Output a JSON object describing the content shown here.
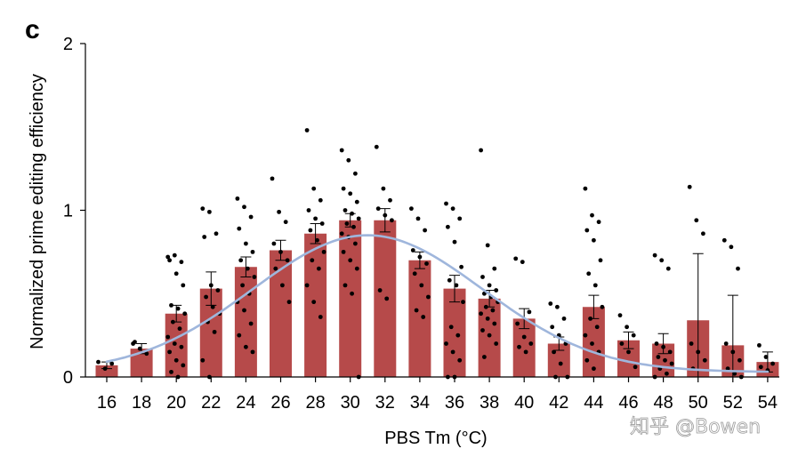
{
  "panel_label": "c",
  "watermark": "知乎 @Bowen",
  "chart_data": {
    "type": "bar",
    "xlabel": "PBS Tm (°C)",
    "ylabel": "Normalized prime editing efficiency",
    "ylim": [
      0,
      2
    ],
    "yticks": [
      "0",
      "1",
      "2"
    ],
    "categories": [
      "16",
      "18",
      "20",
      "22",
      "24",
      "26",
      "28",
      "30",
      "32",
      "34",
      "36",
      "38",
      "40",
      "42",
      "44",
      "46",
      "48",
      "50",
      "52",
      "54"
    ],
    "values": [
      0.07,
      0.17,
      0.38,
      0.53,
      0.66,
      0.76,
      0.86,
      0.94,
      0.94,
      0.7,
      0.53,
      0.47,
      0.35,
      0.2,
      0.42,
      0.22,
      0.2,
      0.34,
      0.19,
      0.09
    ],
    "error": [
      0.02,
      0.03,
      0.05,
      0.1,
      0.06,
      0.06,
      0.06,
      0.04,
      0.07,
      0.05,
      0.08,
      0.05,
      0.06,
      0.04,
      0.07,
      0.05,
      0.06,
      0.4,
      0.3,
      0.06
    ],
    "points": [
      [
        0.09,
        0.05,
        0.08
      ],
      [
        0.2,
        0.17,
        0.14,
        0.21
      ],
      [
        0.72,
        0.73,
        0.69,
        0.7,
        0.62,
        0.55,
        0.43,
        0.41,
        0.38,
        0.33,
        0.29,
        0.24,
        0.2,
        0.18,
        0.15,
        0.1,
        0.07,
        0.03,
        0.0
      ],
      [
        1.01,
        0.99,
        0.86,
        0.84,
        0.55,
        0.52,
        0.48,
        0.42,
        0.38,
        0.33,
        0.27,
        0.1,
        0.0
      ],
      [
        1.07,
        1.02,
        0.96,
        0.89,
        0.8,
        0.75,
        0.7,
        0.65,
        0.6,
        0.55,
        0.5,
        0.45,
        0.4,
        0.32,
        0.25,
        0.18,
        0.15
      ],
      [
        1.19,
        0.99,
        0.93,
        0.8,
        0.75,
        0.7,
        0.65,
        0.55,
        0.45
      ],
      [
        1.48,
        1.13,
        1.06,
        1.0,
        0.95,
        0.92,
        0.88,
        0.82,
        0.75,
        0.7,
        0.65,
        0.55,
        0.45,
        0.36
      ],
      [
        1.36,
        1.3,
        1.22,
        1.13,
        1.1,
        1.05,
        1.0,
        0.98,
        0.95,
        0.92,
        0.9,
        0.86,
        0.84,
        0.8,
        0.75,
        0.7,
        0.65,
        0.55,
        0.5,
        0.0
      ],
      [
        1.38,
        1.13,
        1.06,
        1.01,
        0.97,
        0.94,
        0.52,
        0.47
      ],
      [
        1.01,
        0.95,
        0.88,
        0.76,
        0.72,
        0.68,
        0.62,
        0.55,
        0.48,
        0.4,
        0.36
      ],
      [
        1.04,
        1.01,
        0.95,
        0.9,
        0.81,
        0.66,
        0.58,
        0.55,
        0.45,
        0.3,
        0.25,
        0.2,
        0.15,
        0.1,
        0.0,
        0.0
      ],
      [
        1.36,
        0.79,
        0.65,
        0.6,
        0.55,
        0.52,
        0.5,
        0.48,
        0.45,
        0.42,
        0.4,
        0.38,
        0.35,
        0.32,
        0.28,
        0.25,
        0.2,
        0.12
      ],
      [
        0.71,
        0.69,
        0.39,
        0.32,
        0.24,
        0.2,
        0.18,
        0.15
      ],
      [
        0.44,
        0.42,
        0.35,
        0.3,
        0.25,
        0.2,
        0.15,
        0.08,
        0.0,
        0.0
      ],
      [
        1.13,
        0.97,
        0.93,
        0.88,
        0.82,
        0.7,
        0.62,
        0.55,
        0.42,
        0.35,
        0.3,
        0.25,
        0.2,
        0.15,
        0.1,
        0.05
      ],
      [
        0.37,
        0.3,
        0.25,
        0.2,
        0.15,
        0.06
      ],
      [
        0.73,
        0.7,
        0.65,
        0.2,
        0.18,
        0.15,
        0.12,
        0.1,
        0.08,
        0.05,
        0.02,
        0.0
      ],
      [
        1.14,
        0.94,
        0.86,
        0.2,
        0.15,
        0.1,
        0.05
      ],
      [
        0.82,
        0.78,
        0.65,
        0.2,
        0.15,
        0.1,
        0.05,
        0.02,
        0.0
      ],
      [
        0.19,
        0.12,
        0.08,
        0.06,
        0.04
      ]
    ],
    "fit_curve": {
      "type": "gaussian",
      "peak_y": 0.85,
      "peak_x": 31,
      "sigma": 6.6,
      "baseline": 0.03,
      "x_range": [
        16,
        54
      ],
      "color": "#9fb6dc"
    },
    "bar_color": "#b64a4a",
    "point_color": "#000000",
    "errorbar_color": "#000000"
  }
}
